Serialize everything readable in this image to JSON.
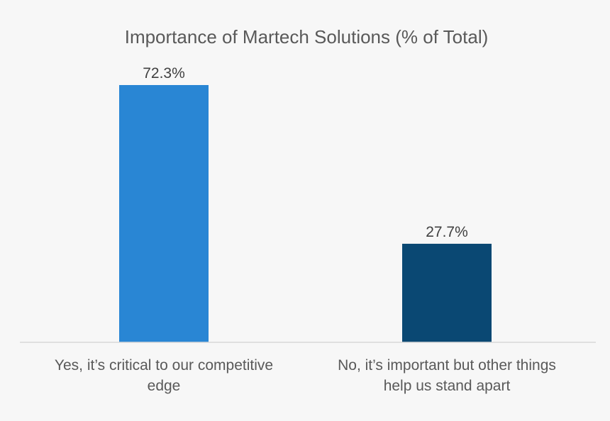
{
  "chart_data": {
    "type": "bar",
    "title": "Importance of Martech Solutions (% of Total)",
    "categories": [
      [
        "Yes, it’s critical to our competitive",
        "edge"
      ],
      [
        "No, it’s important but other things",
        "help us stand apart"
      ]
    ],
    "values": [
      72.3,
      27.7
    ],
    "value_labels": [
      "72.3%",
      "27.7%"
    ],
    "bar_colors": [
      "#2986d4",
      "#0a4873"
    ],
    "ylim": [
      0,
      72.3
    ],
    "grid": false,
    "legend": "none"
  }
}
